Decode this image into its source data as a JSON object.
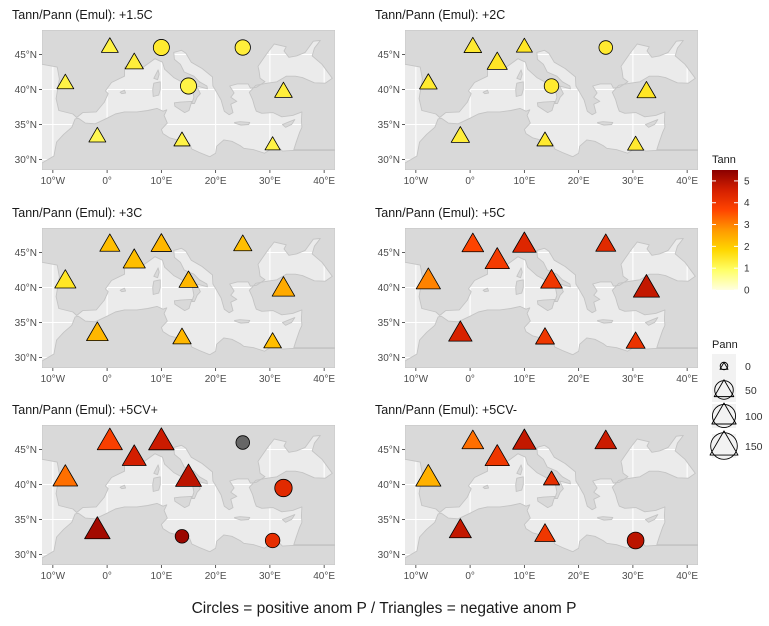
{
  "caption": "Circles = positive anom P / Triangles = negative anom P",
  "colors": {
    "panel_bg": "#ebebeb",
    "land": "#d9d9d9",
    "coast": "#c4c4c4",
    "grid": "#ffffff",
    "axis_text": "#4d4d4d"
  },
  "chart_data": {
    "type": "scatter",
    "subtype": "faceted map bubble plot",
    "grid": true,
    "legend_position": "right",
    "x_axis": {
      "range": [
        -12,
        42
      ],
      "ticks": [
        -10,
        0,
        10,
        20,
        30,
        40
      ],
      "tick_labels": [
        "10°W",
        "0°",
        "10°E",
        "20°E",
        "30°E",
        "40°E"
      ]
    },
    "y_axis": {
      "range": [
        28.5,
        48.5
      ],
      "ticks": [
        30,
        35,
        40,
        45
      ],
      "tick_labels": [
        "30°N",
        "35°N",
        "40°N",
        "45°N"
      ]
    },
    "color_legend": {
      "title": "Tann",
      "range": [
        0,
        5.5
      ],
      "ticks": [
        0,
        1,
        2,
        3,
        4,
        5
      ],
      "tick_labels": [
        "0",
        "1",
        "2",
        "3",
        "4",
        "5"
      ],
      "colors": [
        "#ffffe0",
        "#ffff66",
        "#ffd700",
        "#ff9900",
        "#ff4400",
        "#d41f00",
        "#8b0000"
      ]
    },
    "size_legend": {
      "title": "Pann",
      "values": [
        0,
        50,
        100,
        150
      ],
      "labels": [
        "0",
        "50",
        "100",
        "150"
      ]
    },
    "panels": [
      {
        "title": "Tann/Pann (Emul): +1.5C",
        "points": [
          {
            "lon": 0.5,
            "lat": 46.0,
            "shape": "triangle",
            "tann": 1.2,
            "pann": 30
          },
          {
            "lon": 5.0,
            "lat": 43.7,
            "shape": "triangle",
            "tann": 1.3,
            "pann": 40
          },
          {
            "lon": -7.7,
            "lat": 40.8,
            "shape": "triangle",
            "tann": 1.2,
            "pann": 30
          },
          {
            "lon": -1.8,
            "lat": 33.2,
            "shape": "triangle",
            "tann": 1.1,
            "pann": 30
          },
          {
            "lon": 13.8,
            "lat": 32.6,
            "shape": "triangle",
            "tann": 1.2,
            "pann": 25
          },
          {
            "lon": 30.5,
            "lat": 32.0,
            "shape": "triangle",
            "tann": 1.2,
            "pann": 20
          },
          {
            "lon": 32.5,
            "lat": 39.6,
            "shape": "triangle",
            "tann": 1.3,
            "pann": 35
          },
          {
            "lon": 10.0,
            "lat": 46.0,
            "shape": "circle",
            "tann": 1.4,
            "pann": 30
          },
          {
            "lon": 25.0,
            "lat": 46.0,
            "shape": "circle",
            "tann": 1.3,
            "pann": 25
          },
          {
            "lon": 15.0,
            "lat": 40.5,
            "shape": "circle",
            "tann": 1.2,
            "pann": 30
          }
        ]
      },
      {
        "title": "Tann/Pann (Emul): +2C",
        "points": [
          {
            "lon": 0.5,
            "lat": 46.0,
            "shape": "triangle",
            "tann": 1.4,
            "pann": 35
          },
          {
            "lon": 5.0,
            "lat": 43.7,
            "shape": "triangle",
            "tann": 1.5,
            "pann": 55
          },
          {
            "lon": 10.0,
            "lat": 46.0,
            "shape": "triangle",
            "tann": 1.5,
            "pann": 25
          },
          {
            "lon": -7.7,
            "lat": 40.8,
            "shape": "triangle",
            "tann": 1.4,
            "pann": 35
          },
          {
            "lon": -1.8,
            "lat": 33.2,
            "shape": "triangle",
            "tann": 1.3,
            "pann": 40
          },
          {
            "lon": 13.8,
            "lat": 32.6,
            "shape": "triangle",
            "tann": 1.4,
            "pann": 25
          },
          {
            "lon": 30.5,
            "lat": 32.0,
            "shape": "triangle",
            "tann": 1.4,
            "pann": 25
          },
          {
            "lon": 32.5,
            "lat": 39.6,
            "shape": "triangle",
            "tann": 1.5,
            "pann": 45
          },
          {
            "lon": 25.0,
            "lat": 46.0,
            "shape": "circle",
            "tann": 1.4,
            "pann": 15
          },
          {
            "lon": 15.0,
            "lat": 40.5,
            "shape": "circle",
            "tann": 1.4,
            "pann": 20
          }
        ]
      },
      {
        "title": "Tann/Pann (Emul): +3C",
        "points": [
          {
            "lon": 0.5,
            "lat": 46.0,
            "shape": "triangle",
            "tann": 2.2,
            "pann": 55
          },
          {
            "lon": 5.0,
            "lat": 43.7,
            "shape": "triangle",
            "tann": 2.2,
            "pann": 75
          },
          {
            "lon": 10.0,
            "lat": 46.0,
            "shape": "triangle",
            "tann": 2.3,
            "pann": 60
          },
          {
            "lon": 25.0,
            "lat": 46.0,
            "shape": "triangle",
            "tann": 2.2,
            "pann": 40
          },
          {
            "lon": 15.0,
            "lat": 40.8,
            "shape": "triangle",
            "tann": 2.3,
            "pann": 45
          },
          {
            "lon": -7.7,
            "lat": 40.8,
            "shape": "triangle",
            "tann": 1.5,
            "pann": 65
          },
          {
            "lon": -1.8,
            "lat": 33.3,
            "shape": "triangle",
            "tann": 2.3,
            "pann": 70
          },
          {
            "lon": 13.8,
            "lat": 32.7,
            "shape": "triangle",
            "tann": 2.3,
            "pann": 40
          },
          {
            "lon": 30.5,
            "lat": 32.1,
            "shape": "triangle",
            "tann": 2.2,
            "pann": 35
          },
          {
            "lon": 32.5,
            "lat": 39.7,
            "shape": "triangle",
            "tann": 2.5,
            "pann": 80
          }
        ]
      },
      {
        "title": "Tann/Pann (Emul): +5C",
        "points": [
          {
            "lon": 0.5,
            "lat": 46.0,
            "shape": "triangle",
            "tann": 3.7,
            "pann": 70
          },
          {
            "lon": 5.0,
            "lat": 43.7,
            "shape": "triangle",
            "tann": 3.9,
            "pann": 100
          },
          {
            "lon": 10.0,
            "lat": 46.0,
            "shape": "triangle",
            "tann": 4.4,
            "pann": 90
          },
          {
            "lon": 25.0,
            "lat": 46.0,
            "shape": "triangle",
            "tann": 4.3,
            "pann": 55
          },
          {
            "lon": 15.0,
            "lat": 40.8,
            "shape": "triangle",
            "tann": 4.0,
            "pann": 70
          },
          {
            "lon": -7.7,
            "lat": 40.8,
            "shape": "triangle",
            "tann": 3.0,
            "pann": 100
          },
          {
            "lon": -1.8,
            "lat": 33.3,
            "shape": "triangle",
            "tann": 4.5,
            "pann": 90
          },
          {
            "lon": 13.8,
            "lat": 32.7,
            "shape": "triangle",
            "tann": 4.0,
            "pann": 45
          },
          {
            "lon": 30.5,
            "lat": 32.1,
            "shape": "triangle",
            "tann": 4.1,
            "pann": 45
          },
          {
            "lon": 32.5,
            "lat": 39.7,
            "shape": "triangle",
            "tann": 4.8,
            "pann": 125
          }
        ]
      },
      {
        "title": "Tann/Pann (Emul): +5CV+",
        "points": [
          {
            "lon": 0.5,
            "lat": 46.0,
            "shape": "triangle",
            "tann": 3.8,
            "pann": 110
          },
          {
            "lon": 5.0,
            "lat": 43.7,
            "shape": "triangle",
            "tann": 4.6,
            "pann": 95
          },
          {
            "lon": 10.0,
            "lat": 46.0,
            "shape": "triangle",
            "tann": 4.7,
            "pann": 115
          },
          {
            "lon": 15.0,
            "lat": 40.8,
            "shape": "triangle",
            "tann": 4.9,
            "pann": 120
          },
          {
            "lon": -7.7,
            "lat": 40.8,
            "shape": "triangle",
            "tann": 3.2,
            "pann": 105
          },
          {
            "lon": -1.8,
            "lat": 33.3,
            "shape": "triangle",
            "tann": 5.2,
            "pann": 115
          },
          {
            "lon": 25.0,
            "lat": 46.0,
            "shape": "circle",
            "tann": null,
            "pann": 15
          },
          {
            "lon": 32.5,
            "lat": 39.5,
            "shape": "circle",
            "tann": 4.3,
            "pann": 40
          },
          {
            "lon": 13.8,
            "lat": 32.6,
            "shape": "circle",
            "tann": 5.3,
            "pann": 15
          },
          {
            "lon": 30.5,
            "lat": 32.0,
            "shape": "circle",
            "tann": 4.2,
            "pann": 20
          }
        ]
      },
      {
        "title": "Tann/Pann (Emul): +5CV-",
        "points": [
          {
            "lon": 0.5,
            "lat": 46.0,
            "shape": "triangle",
            "tann": 3.2,
            "pann": 70
          },
          {
            "lon": 5.0,
            "lat": 43.7,
            "shape": "triangle",
            "tann": 4.0,
            "pann": 100
          },
          {
            "lon": 10.0,
            "lat": 46.0,
            "shape": "triangle",
            "tann": 4.8,
            "pann": 90
          },
          {
            "lon": 25.0,
            "lat": 46.0,
            "shape": "triangle",
            "tann": 4.7,
            "pann": 70
          },
          {
            "lon": 15.0,
            "lat": 40.6,
            "shape": "triangle",
            "tann": 4.2,
            "pann": 25
          },
          {
            "lon": -7.7,
            "lat": 40.8,
            "shape": "triangle",
            "tann": 2.4,
            "pann": 110
          },
          {
            "lon": -1.8,
            "lat": 33.3,
            "shape": "triangle",
            "tann": 4.8,
            "pann": 75
          },
          {
            "lon": 13.8,
            "lat": 32.7,
            "shape": "triangle",
            "tann": 4.0,
            "pann": 60
          },
          {
            "lon": 30.5,
            "lat": 32.0,
            "shape": "circle",
            "tann": 4.9,
            "pann": 35
          }
        ]
      }
    ]
  }
}
